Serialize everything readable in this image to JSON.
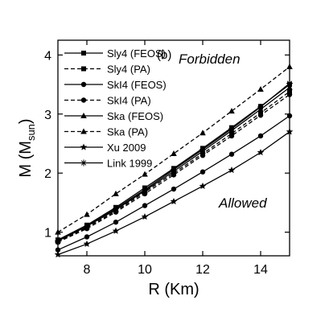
{
  "chart_data": {
    "type": "line",
    "annotation_panel": "(b)",
    "annotation_top": "Forbidden",
    "annotation_bottom": "Allowed",
    "xlabel": "R (Km)",
    "ylabel": "M (M",
    "ylabel_sub": "sun",
    "ylabel_end": ")",
    "x": [
      7,
      8,
      9,
      10,
      11,
      12,
      13,
      14,
      15
    ],
    "xlim": [
      7,
      15
    ],
    "ylim": [
      0.6,
      4.25
    ],
    "xticks": [
      8,
      10,
      12,
      14
    ],
    "yticks": [
      1,
      2,
      3,
      4
    ],
    "series": [
      {
        "name": "Sly4 (FEOS)",
        "color": "#000000",
        "marker": "square",
        "dash": false,
        "values": [
          0.87,
          1.12,
          1.42,
          1.75,
          2.08,
          2.42,
          2.77,
          3.13,
          3.5
        ]
      },
      {
        "name": "Sly4 (PA)",
        "color": "#000000",
        "marker": "square",
        "dash": true,
        "values": [
          0.84,
          1.08,
          1.36,
          1.68,
          2.0,
          2.33,
          2.67,
          3.02,
          3.38
        ]
      },
      {
        "name": "SkI4 (FEOS)",
        "color": "#000000",
        "marker": "circle",
        "dash": false,
        "values": [
          0.7,
          0.92,
          1.17,
          1.45,
          1.73,
          2.02,
          2.32,
          2.63,
          2.97
        ]
      },
      {
        "name": "SkI4 (PA)",
        "color": "#000000",
        "marker": "circle",
        "dash": true,
        "values": [
          0.83,
          1.06,
          1.34,
          1.65,
          1.97,
          2.3,
          2.63,
          2.98,
          3.33
        ]
      },
      {
        "name": "Ska  (FEOS)",
        "color": "#000000",
        "marker": "triangle",
        "dash": false,
        "values": [
          0.86,
          1.1,
          1.38,
          1.7,
          2.03,
          2.37,
          2.72,
          3.08,
          3.45
        ]
      },
      {
        "name": "Ska  (PA)",
        "color": "#000000",
        "marker": "triangle",
        "dash": true,
        "values": [
          1.0,
          1.3,
          1.65,
          1.98,
          2.33,
          2.68,
          3.05,
          3.42,
          3.8
        ]
      },
      {
        "name": "Xu 2009",
        "color": "#000000",
        "marker": "star",
        "dash": false,
        "values": [
          0.62,
          0.8,
          1.02,
          1.26,
          1.52,
          1.78,
          2.05,
          2.35,
          2.7
        ]
      },
      {
        "name": "Link 1999",
        "color": "#000000",
        "marker": "asterisk",
        "dash": false,
        "values": [
          0.85,
          1.1,
          1.4,
          1.72,
          2.06,
          2.4,
          2.75,
          3.12,
          3.52
        ]
      }
    ]
  }
}
